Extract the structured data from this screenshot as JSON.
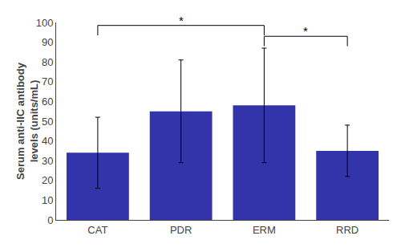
{
  "chart_data": {
    "type": "bar",
    "categories": [
      "CAT",
      "PDR",
      "ERM",
      "RRD"
    ],
    "values": [
      34,
      55,
      58,
      35
    ],
    "errors": [
      18,
      26,
      29,
      13
    ],
    "color": "#3333AA",
    "ylabel": "Serum anti-IIC antibody\nlevels (units/mL)",
    "ylim": [
      0,
      100
    ],
    "yticks": [
      0,
      10,
      20,
      30,
      40,
      50,
      60,
      70,
      80,
      90,
      100
    ],
    "grid": false,
    "significance": [
      {
        "x1": "CAT",
        "x2": "ERM",
        "label": "*"
      },
      {
        "x1": "ERM",
        "x2": "RRD",
        "label": "*"
      }
    ]
  }
}
